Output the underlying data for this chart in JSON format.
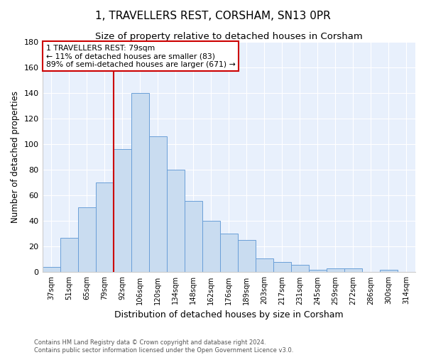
{
  "title": "1, TRAVELLERS REST, CORSHAM, SN13 0PR",
  "subtitle": "Size of property relative to detached houses in Corsham",
  "xlabel": "Distribution of detached houses by size in Corsham",
  "ylabel": "Number of detached properties",
  "categories": [
    "37sqm",
    "51sqm",
    "65sqm",
    "79sqm",
    "92sqm",
    "106sqm",
    "120sqm",
    "134sqm",
    "148sqm",
    "162sqm",
    "176sqm",
    "189sqm",
    "203sqm",
    "217sqm",
    "231sqm",
    "245sqm",
    "259sqm",
    "272sqm",
    "286sqm",
    "300sqm",
    "314sqm"
  ],
  "values": [
    4,
    27,
    51,
    70,
    96,
    140,
    106,
    80,
    56,
    40,
    30,
    25,
    11,
    8,
    6,
    2,
    3,
    3,
    0,
    2,
    0
  ],
  "bar_color": "#c9dcf0",
  "bar_edge_color": "#6a9fd8",
  "annotation_line1": "1 TRAVELLERS REST: 79sqm",
  "annotation_line2": "← 11% of detached houses are smaller (83)",
  "annotation_line3": "89% of semi-detached houses are larger (671) →",
  "annotation_box_color": "#ffffff",
  "annotation_box_edge": "#cc0000",
  "vline_color": "#cc0000",
  "vline_x_index": 3,
  "ylim": [
    0,
    180
  ],
  "yticks": [
    0,
    20,
    40,
    60,
    80,
    100,
    120,
    140,
    160,
    180
  ],
  "background_color": "#e8f0fc",
  "footer_line1": "Contains HM Land Registry data © Crown copyright and database right 2024.",
  "footer_line2": "Contains public sector information licensed under the Open Government Licence v3.0.",
  "title_fontsize": 11,
  "subtitle_fontsize": 9.5,
  "xlabel_fontsize": 9,
  "ylabel_fontsize": 8.5
}
